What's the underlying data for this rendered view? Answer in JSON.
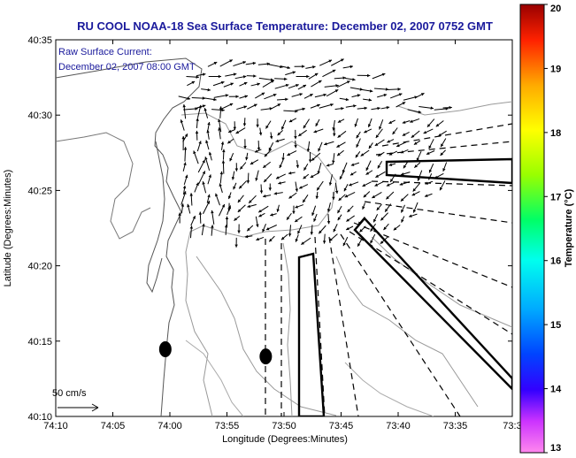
{
  "chart_data": {
    "type": "vector-field-map",
    "title": "RU COOL  NOAA-18  Sea Surface Temperature:  December 02, 2007 0752 GMT",
    "annotation_lines": [
      "Raw Surface Current:",
      "December 02, 2007 08:00 GMT"
    ],
    "xlabel": "Longitude (Degrees:Minutes)",
    "ylabel": "Latitude (Degrees:Minutes)",
    "x_ticks": [
      "74:10",
      "74:05",
      "74:00",
      "73:55",
      "73:50",
      "73:45",
      "73:40",
      "73:35",
      "73:3"
    ],
    "y_ticks": [
      "40:10",
      "40:15",
      "40:20",
      "40:25",
      "40:30",
      "40:35"
    ],
    "x_range_minutes_west": [
      10,
      -20
    ],
    "y_range_minutes_north": [
      10,
      35
    ],
    "scale_label": "50 cm/s",
    "colorbar": {
      "label": "Temperature (°C)",
      "range": [
        13,
        20
      ],
      "ticks": [
        "13",
        "14",
        "15",
        "16",
        "17",
        "18",
        "19",
        "20"
      ]
    },
    "dots": [
      {
        "lon": 73.98,
        "lat": 40.246
      },
      {
        "lon": 73.87,
        "lat": 40.238
      }
    ],
    "grid": false,
    "legend": "colorbar right"
  }
}
